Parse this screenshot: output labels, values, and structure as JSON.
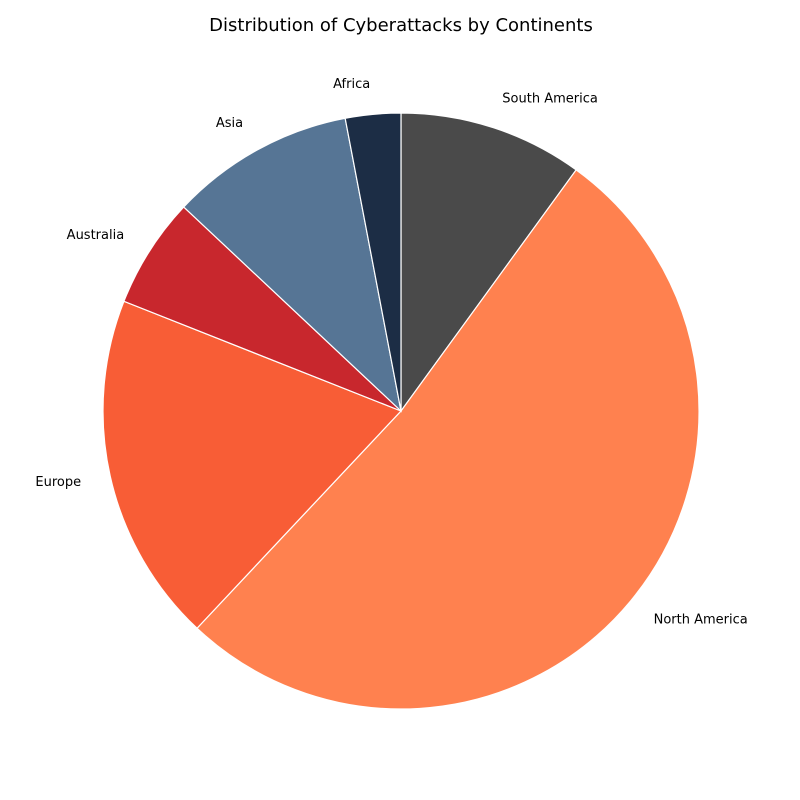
{
  "chart_data": {
    "type": "pie",
    "title": "Distribution of Cyberattacks by Continents",
    "categories": [
      "South America",
      "North America",
      "Europe",
      "Australia",
      "Asia",
      "Africa"
    ],
    "values": [
      10,
      52,
      19,
      6,
      10,
      3
    ],
    "unit": "percent",
    "start_angle_deg": 90,
    "direction": "clockwise",
    "colors": [
      "#4a4a4a",
      "#ff814f",
      "#f85d36",
      "#c8272d",
      "#567595",
      "#1c2d45"
    ],
    "edge_color": "#ffffff",
    "legend": "none"
  }
}
